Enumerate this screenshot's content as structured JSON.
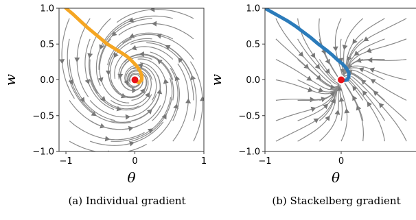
{
  "chart_data": [
    {
      "type": "streamplot",
      "caption": "(a) Individual gradient",
      "xlabel": "θ",
      "ylabel": "w",
      "xlim": [
        -1.1,
        1.0
      ],
      "ylim": [
        -1.0,
        1.0
      ],
      "xticks": [
        -1,
        0,
        1
      ],
      "yticks": [
        -1.0,
        -0.5,
        0.0,
        0.5,
        1.0
      ],
      "ytick_labels": [
        "−1.0",
        "−0.5",
        "0.0",
        "0.5",
        "1.0"
      ],
      "xtick_labels": [
        "−1",
        "0",
        "1"
      ],
      "field": "spiral",
      "trajectory_color": "#f5a623",
      "trajectory": [
        [
          -1.0,
          1.0
        ],
        [
          -0.9,
          0.92
        ],
        [
          -0.8,
          0.83
        ],
        [
          -0.7,
          0.74
        ],
        [
          -0.6,
          0.66
        ],
        [
          -0.5,
          0.58
        ],
        [
          -0.4,
          0.5
        ],
        [
          -0.3,
          0.44
        ],
        [
          -0.2,
          0.38
        ],
        [
          -0.12,
          0.33
        ],
        [
          -0.05,
          0.27
        ],
        [
          0.02,
          0.2
        ],
        [
          0.07,
          0.13
        ],
        [
          0.1,
          0.06
        ],
        [
          0.1,
          0.0
        ],
        [
          0.06,
          -0.04
        ],
        [
          0.02,
          -0.02
        ],
        [
          0.0,
          0.0
        ]
      ],
      "equilibrium": [
        0.0,
        0.0
      ],
      "equilibrium_color": "#e8141b"
    },
    {
      "type": "streamplot",
      "caption": "(b) Stackelberg gradient",
      "xlabel": "θ",
      "ylabel": "w",
      "xlim": [
        -1.0,
        1.0
      ],
      "ylim": [
        -1.0,
        1.0
      ],
      "xticks": [
        -1,
        0
      ],
      "yticks": [
        -1.0,
        -0.5,
        0.0,
        0.5,
        1.0
      ],
      "ytick_labels": [
        "−1.0",
        "−0.5",
        "0.0",
        "0.5",
        "1.0"
      ],
      "xtick_labels": [
        "−1",
        "0"
      ],
      "field": "node",
      "trajectory_color": "#2b7bba",
      "trajectory": [
        [
          -1.0,
          1.0
        ],
        [
          -0.9,
          0.94
        ],
        [
          -0.8,
          0.88
        ],
        [
          -0.7,
          0.82
        ],
        [
          -0.6,
          0.75
        ],
        [
          -0.5,
          0.67
        ],
        [
          -0.4,
          0.59
        ],
        [
          -0.3,
          0.5
        ],
        [
          -0.2,
          0.42
        ],
        [
          -0.12,
          0.35
        ],
        [
          -0.05,
          0.28
        ],
        [
          0.02,
          0.22
        ],
        [
          0.07,
          0.16
        ],
        [
          0.1,
          0.1
        ],
        [
          0.1,
          0.04
        ],
        [
          0.08,
          0.0
        ],
        [
          0.03,
          -0.01
        ],
        [
          0.0,
          0.0
        ]
      ],
      "equilibrium": [
        0.0,
        0.0
      ],
      "equilibrium_color": "#e8141b"
    }
  ]
}
